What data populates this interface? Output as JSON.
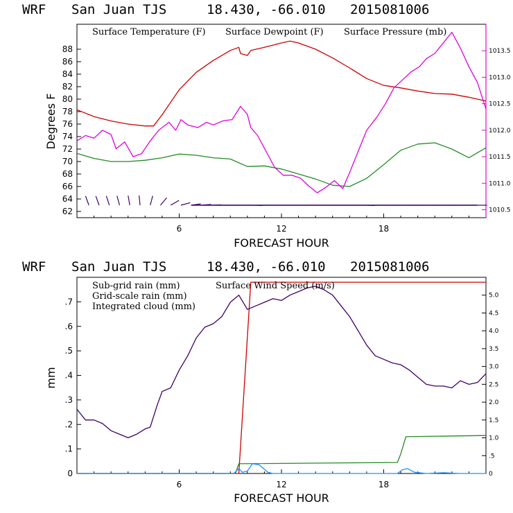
{
  "header": {
    "model": "WRF",
    "station": "San Juan TJS",
    "coords": "18.430, -66.010",
    "run": "2015081006"
  },
  "colors": {
    "temperature": "#cc0000",
    "dewpoint": "#228b22",
    "pressure": "#dd00dd",
    "wind": "#3d0066",
    "subgrid": "#cc0000",
    "gridscale": "#228b22",
    "cloud": "#1e90ff"
  },
  "chart_data": [
    {
      "type": "line",
      "title": "WRF  San Juan TJS  18.430, -66.010  2015081006",
      "xlabel": "FORECAST HOUR",
      "ylabel": "Degrees F",
      "xlim": [
        0,
        24
      ],
      "ylim": [
        61,
        92
      ],
      "y2lim": [
        1010.35,
        1014.0
      ],
      "xticks": [
        6,
        12,
        18
      ],
      "yticks": [
        62,
        64,
        66,
        68,
        70,
        72,
        74,
        76,
        78,
        80,
        82,
        84,
        86,
        88
      ],
      "y2ticks": [
        "1010.5",
        "1011.0",
        "1011.5",
        "1012.0",
        "1012.5",
        "1013.0",
        "1013.5"
      ],
      "grid": false,
      "legend_position": "top",
      "series": [
        {
          "name": "Surface Temperature (F)",
          "axis": "left",
          "x": [
            0,
            1,
            2,
            3,
            4,
            4.5,
            5,
            6,
            7,
            8,
            9,
            9.5,
            9.6,
            10,
            10.2,
            11,
            12,
            12.5,
            13,
            14,
            15,
            16,
            17,
            18,
            19,
            20,
            21,
            22,
            23,
            24
          ],
          "values": [
            78.3,
            77.2,
            76.5,
            76.0,
            75.7,
            75.7,
            77.5,
            81.5,
            84.3,
            86.2,
            87.8,
            88.3,
            87.3,
            87.0,
            87.8,
            88.3,
            89.0,
            89.3,
            89.0,
            88.0,
            86.6,
            85.0,
            83.3,
            82.2,
            81.8,
            81.3,
            80.9,
            80.8,
            80.3,
            79.7
          ]
        },
        {
          "name": "Surface Dewpoint (F)",
          "axis": "left",
          "x": [
            0,
            1,
            2,
            3,
            4,
            5,
            6,
            7,
            8,
            9,
            10,
            11,
            12,
            13,
            14,
            15,
            16,
            17,
            18,
            19,
            20,
            21,
            22,
            23,
            24
          ],
          "values": [
            71.3,
            70.5,
            70.0,
            70.0,
            70.2,
            70.6,
            71.2,
            71.0,
            70.6,
            70.4,
            69.2,
            69.3,
            68.8,
            68.0,
            67.2,
            66.2,
            66.0,
            67.3,
            69.5,
            71.8,
            72.8,
            73.0,
            72.0,
            70.6,
            72.2
          ]
        },
        {
          "name": "Surface Pressure (mb)",
          "axis": "right",
          "x": [
            0,
            0.5,
            1,
            1.5,
            2,
            2.3,
            2.8,
            3.3,
            3.8,
            4.3,
            4.8,
            5.4,
            5.8,
            6.1,
            6.5,
            7.1,
            7.6,
            8,
            8.6,
            9.1,
            9.6,
            10,
            10.2,
            10.6,
            11.1,
            11.6,
            12.1,
            12.6,
            13.1,
            13.6,
            14.1,
            14.6,
            15.1,
            15.6,
            16,
            16.5,
            17,
            17.6,
            18.1,
            18.6,
            19.1,
            19.6,
            20.1,
            20.5,
            21,
            21.5,
            22,
            22.5,
            23,
            23.5,
            24
          ],
          "values": [
            1011.8,
            1011.9,
            1011.85,
            1012.0,
            1011.92,
            1011.65,
            1011.78,
            1011.5,
            1011.56,
            1011.8,
            1012.0,
            1012.15,
            1012.0,
            1012.2,
            1012.1,
            1012.05,
            1012.15,
            1012.1,
            1012.18,
            1012.2,
            1012.45,
            1012.3,
            1012.05,
            1011.9,
            1011.6,
            1011.3,
            1011.15,
            1011.15,
            1011.1,
            1010.95,
            1010.82,
            1010.92,
            1011.05,
            1010.9,
            1011.2,
            1011.6,
            1012.0,
            1012.25,
            1012.5,
            1012.8,
            1012.95,
            1013.1,
            1013.2,
            1013.35,
            1013.45,
            1013.65,
            1013.85,
            1013.55,
            1013.2,
            1012.9,
            1012.4
          ]
        }
      ],
      "wind_barbs": {
        "x": [
          0.7,
          1.3,
          1.9,
          2.5,
          3.1,
          3.7,
          4.3,
          4.9,
          5.5,
          6.1,
          6.7,
          7.3,
          7.9,
          8.5,
          9.1,
          9.7,
          10.3,
          10.9,
          11.5,
          12.1,
          12.7,
          13.3,
          13.9,
          14.5,
          15.1,
          15.7,
          16.3,
          16.9,
          17.5,
          18.1,
          18.7,
          19.3,
          19.9,
          20.5,
          21.1,
          21.7,
          22.3,
          22.9,
          23.5
        ],
        "direction_deg": [
          160,
          160,
          162,
          165,
          170,
          175,
          195,
          220,
          240,
          255,
          262,
          265,
          268,
          270,
          270,
          270,
          272,
          270,
          270,
          270,
          270,
          270,
          270,
          270,
          270,
          270,
          270,
          272,
          270,
          270,
          270,
          270,
          270,
          270,
          270,
          270,
          270,
          270,
          270
        ]
      }
    },
    {
      "type": "line",
      "title": "WRF  San Juan TJS  18.430, -66.010  2015081006",
      "xlabel": "FORECAST HOUR",
      "ylabel": "mm",
      "xlim": [
        0,
        24
      ],
      "ylim": [
        0,
        0.8
      ],
      "y2lim": [
        0,
        5.5
      ],
      "xticks": [
        6,
        12,
        18
      ],
      "yticks": [
        "0",
        ".1",
        ".2",
        ".3",
        ".4",
        ".5",
        ".6",
        ".7"
      ],
      "y2ticks": [
        "0",
        ".5",
        "1.0",
        "1.5",
        "2.0",
        "2.5",
        "3.0",
        "3.5",
        "4.0",
        "4.5",
        "5.0"
      ],
      "grid": false,
      "legend_position": "top-left",
      "series": [
        {
          "name": "Sub-grid rain (mm)",
          "axis": "left",
          "x": [
            0,
            9.5,
            10.2,
            24
          ],
          "values": [
            0,
            0,
            0.78,
            0.78
          ]
        },
        {
          "name": "Grid-scale rain (mm)",
          "axis": "left",
          "x": [
            0,
            9.3,
            9.5,
            18.8,
            19.0,
            19.3,
            24
          ],
          "values": [
            0,
            0,
            0.04,
            0.045,
            0.08,
            0.15,
            0.155
          ]
        },
        {
          "name": "Integrated cloud (mm)",
          "axis": "left",
          "x": [
            0,
            9.2,
            9.5,
            9.7,
            10.0,
            10.3,
            10.7,
            11.2,
            11.5,
            18.8,
            19.1,
            19.4,
            19.8,
            20.5,
            21.5,
            22.5,
            24
          ],
          "values": [
            0,
            0,
            0.02,
            0.005,
            0.01,
            0.04,
            0.035,
            0.005,
            0,
            0,
            0.015,
            0.02,
            0.005,
            0,
            0.003,
            0,
            0
          ]
        },
        {
          "name": "Surface Wind Speed (m/s)",
          "axis": "right",
          "x": [
            0,
            0.5,
            1,
            1.5,
            2,
            2.5,
            3,
            3.5,
            4,
            4.3,
            4.7,
            5,
            5.5,
            6,
            6.5,
            7,
            7.5,
            8,
            8.5,
            9,
            9.5,
            10,
            10.5,
            11,
            11.5,
            12,
            12.5,
            13,
            13.5,
            14,
            14.5,
            15,
            15.5,
            16,
            16.5,
            17,
            17.5,
            18,
            18.5,
            19,
            19.5,
            20,
            20.5,
            21,
            21.5,
            22,
            22.5,
            23,
            23.5,
            24
          ],
          "values": [
            1.8,
            1.5,
            1.5,
            1.4,
            1.2,
            1.1,
            1.0,
            1.1,
            1.25,
            1.3,
            1.9,
            2.3,
            2.4,
            2.9,
            3.3,
            3.8,
            4.1,
            4.2,
            4.4,
            4.8,
            5.0,
            4.6,
            4.7,
            4.8,
            4.9,
            4.85,
            5.0,
            5.1,
            5.2,
            5.25,
            5.15,
            5.0,
            4.7,
            4.4,
            4.0,
            3.6,
            3.3,
            3.2,
            3.1,
            3.05,
            2.9,
            2.7,
            2.5,
            2.45,
            2.45,
            2.4,
            2.6,
            2.5,
            2.55,
            2.8
          ]
        }
      ]
    }
  ]
}
